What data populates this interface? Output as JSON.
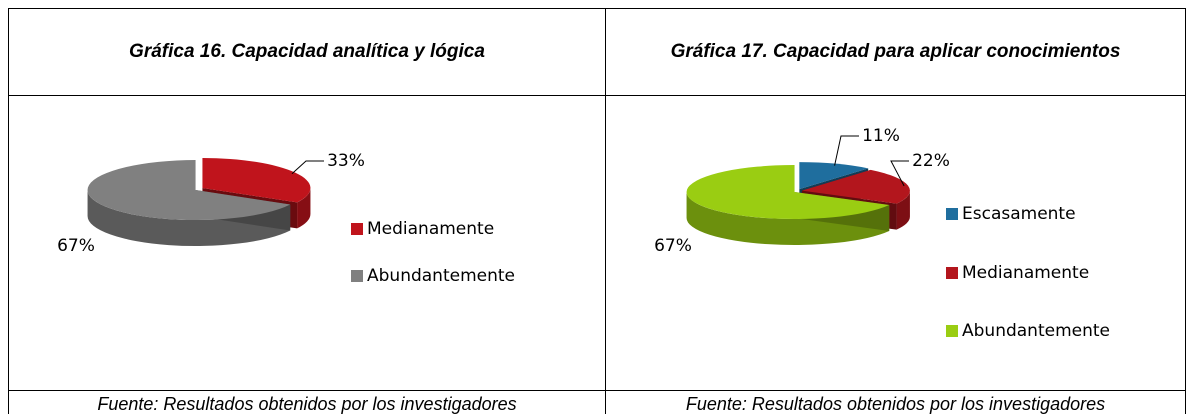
{
  "chart_data": [
    {
      "type": "pie",
      "title": "Gráfica 16. Capacidad analítica y lógica",
      "categories": [
        "Medianamente",
        "Abundantemente"
      ],
      "values": [
        33,
        67
      ],
      "value_labels": [
        "33%",
        "67%"
      ],
      "colors": [
        "#c0141c",
        "#808080"
      ],
      "legend": "right",
      "source": "Fuente: Resultados obtenidos por los investigadores"
    },
    {
      "type": "pie",
      "title": "Gráfica 17. Capacidad para aplicar conocimientos",
      "categories": [
        "Escasamente",
        "Medianamente",
        "Abundantemente"
      ],
      "values": [
        11,
        22,
        67
      ],
      "value_labels": [
        "11%",
        "22%",
        "67%"
      ],
      "colors": [
        "#1f6e9e",
        "#b3161d",
        "#9acd12"
      ],
      "legend": "right",
      "source": "Fuente: Resultados obtenidos por los investigadores"
    }
  ]
}
